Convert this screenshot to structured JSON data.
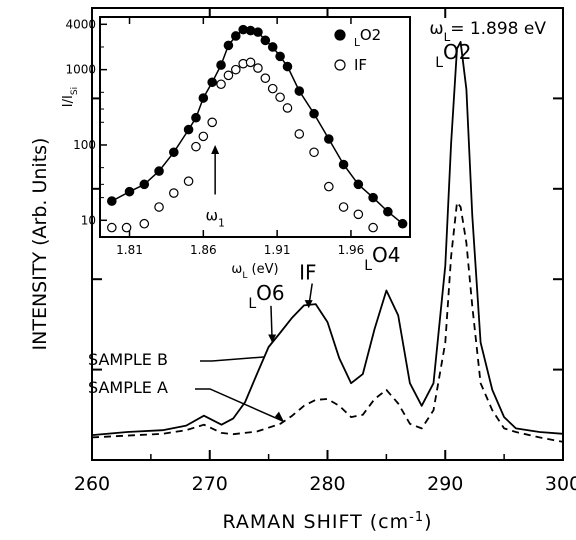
{
  "chart_data": [
    {
      "type": "line",
      "title": "",
      "xlabel": "RAMAN SHIFT (cm-1)",
      "ylabel": "INTENSITY (Arb. Units)",
      "xlim": [
        260,
        300
      ],
      "ylim": [
        0,
        10
      ],
      "x_ticks": [
        "260",
        "270",
        "280",
        "290",
        "300"
      ],
      "annotation_top_right": "ωL= 1.898 eV",
      "peak_labels": [
        {
          "text": "LO2",
          "x": 291.2,
          "y": 8.7
        },
        {
          "text": "LO4",
          "x": 285.0,
          "y": 4.2
        },
        {
          "text": "IF",
          "x": 278.5,
          "y": 3.55
        },
        {
          "text": "LO6",
          "x": 275.5,
          "y": 3.1
        }
      ],
      "sample_labels": [
        {
          "text": "SAMPLE B",
          "series": "B",
          "x": 273.5,
          "y": 2.4
        },
        {
          "text": "SAMPLE A",
          "series": "A",
          "x": 276.0,
          "y": 0.8
        }
      ],
      "series": [
        {
          "name": "SAMPLE B",
          "style": "solid",
          "x": [
            260,
            263,
            266,
            268,
            269.5,
            271,
            272,
            273,
            274,
            275,
            276,
            277,
            278,
            279,
            280,
            281,
            282,
            283,
            284,
            285,
            286,
            287,
            288,
            289,
            290,
            290.5,
            291,
            291.3,
            291.8,
            292.3,
            293,
            294,
            295,
            296,
            298,
            300
          ],
          "y": [
            0.55,
            0.62,
            0.66,
            0.76,
            0.98,
            0.78,
            0.92,
            1.28,
            1.9,
            2.5,
            2.82,
            3.15,
            3.42,
            3.45,
            3.05,
            2.25,
            1.7,
            1.9,
            2.9,
            3.75,
            3.2,
            1.7,
            1.2,
            1.7,
            4.3,
            7.0,
            9.1,
            9.25,
            8.2,
            5.4,
            2.6,
            1.55,
            0.95,
            0.7,
            0.62,
            0.58
          ]
        },
        {
          "name": "SAMPLE A",
          "style": "dashed",
          "x": [
            260,
            263,
            266,
            268,
            269.5,
            271,
            272,
            274,
            276,
            277,
            278,
            279,
            280,
            281,
            282,
            283,
            284,
            285,
            286,
            287,
            288,
            289,
            290,
            290.5,
            291,
            291.3,
            291.8,
            292.3,
            293,
            294,
            295,
            296,
            298,
            300
          ],
          "y": [
            0.5,
            0.54,
            0.58,
            0.66,
            0.78,
            0.6,
            0.57,
            0.63,
            0.8,
            0.98,
            1.2,
            1.33,
            1.35,
            1.2,
            0.95,
            1.0,
            1.35,
            1.55,
            1.25,
            0.8,
            0.7,
            1.1,
            2.6,
            4.5,
            5.7,
            5.6,
            4.8,
            3.4,
            1.7,
            1.1,
            0.7,
            0.62,
            0.5,
            0.4
          ]
        }
      ]
    },
    {
      "type": "scatter",
      "title": "",
      "xlabel": "ωL (eV)",
      "ylabel": "I/ISi",
      "xlim": [
        1.79,
        2.0
      ],
      "ylim": [
        6,
        5000
      ],
      "y_scale": "log",
      "x_ticks": [
        "1.81",
        "1.86",
        "1.91",
        "1.96"
      ],
      "y_ticks": [
        "10",
        "100",
        "1000",
        "4000"
      ],
      "legend_position": "top-right",
      "marker_label": "ω1",
      "marker_x": 1.868,
      "series": [
        {
          "name": "LO2",
          "marker": "filled-circle",
          "x": [
            1.798,
            1.81,
            1.82,
            1.83,
            1.84,
            1.85,
            1.855,
            1.86,
            1.866,
            1.872,
            1.877,
            1.882,
            1.887,
            1.892,
            1.897,
            1.902,
            1.907,
            1.912,
            1.917,
            1.925,
            1.935,
            1.945,
            1.955,
            1.965,
            1.975,
            1.985,
            1.995
          ],
          "y": [
            18,
            24,
            30,
            45,
            80,
            160,
            230,
            420,
            680,
            1150,
            2100,
            2800,
            3400,
            3300,
            3150,
            2450,
            2000,
            1500,
            1100,
            520,
            260,
            120,
            55,
            30,
            20,
            13,
            9
          ]
        },
        {
          "name": "IF",
          "marker": "open-circle",
          "x": [
            1.798,
            1.808,
            1.82,
            1.83,
            1.84,
            1.85,
            1.855,
            1.86,
            1.866,
            1.872,
            1.877,
            1.882,
            1.887,
            1.892,
            1.897,
            1.902,
            1.907,
            1.912,
            1.917,
            1.925,
            1.935,
            1.945,
            1.955,
            1.965,
            1.975
          ],
          "y": [
            8,
            8,
            9,
            15,
            23,
            33,
            95,
            130,
            200,
            640,
            840,
            1000,
            1200,
            1250,
            1050,
            770,
            560,
            430,
            310,
            140,
            80,
            28,
            15,
            12,
            8
          ]
        }
      ]
    }
  ]
}
